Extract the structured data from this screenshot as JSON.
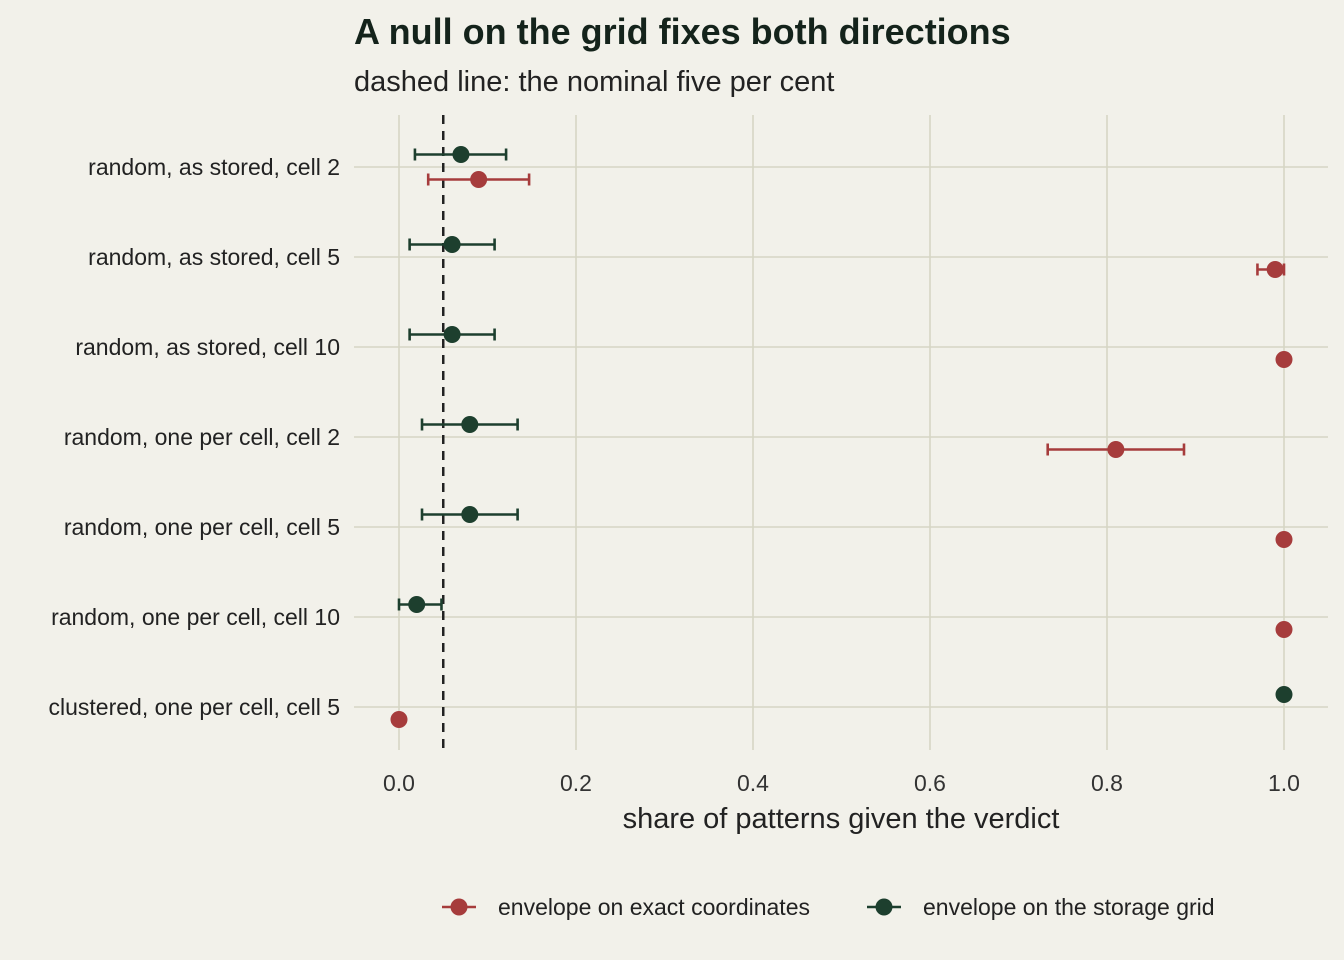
{
  "chart_data": {
    "type": "scatter",
    "title": "A null on the grid fixes both directions",
    "subtitle": "dashed line: the nominal five per cent",
    "xlabel": "share of patterns given the verdict",
    "ylabel": "",
    "xlim": [
      -0.05,
      1.05
    ],
    "x_ticks": [
      "0.0",
      "0.2",
      "0.4",
      "0.6",
      "0.8",
      "1.0"
    ],
    "reference_line": {
      "value": 0.05,
      "style": "dashed"
    },
    "categories": [
      "random, as stored, cell 2",
      "random, as stored, cell 5",
      "random, as stored, cell 10",
      "random, one per cell, cell 2",
      "random, one per cell, cell 5",
      "random, one per cell, cell 10",
      "clustered, one per cell, cell 5"
    ],
    "series": [
      {
        "name": "envelope on exact coordinates",
        "color": "#a63c3c",
        "values": [
          0.09,
          0.99,
          1.0,
          0.81,
          1.0,
          1.0,
          0.0
        ],
        "lower": [
          0.033,
          0.97,
          null,
          0.733,
          null,
          null,
          null
        ],
        "upper": [
          0.147,
          1.0,
          null,
          0.887,
          null,
          null,
          null
        ]
      },
      {
        "name": "envelope on the storage grid",
        "color": "#1d3f2e",
        "values": [
          0.07,
          0.06,
          0.06,
          0.08,
          0.08,
          0.02,
          1.0
        ],
        "lower": [
          0.018,
          0.012,
          0.012,
          0.026,
          0.026,
          0.0,
          null
        ],
        "upper": [
          0.121,
          0.108,
          0.108,
          0.134,
          0.134,
          0.048,
          null
        ]
      }
    ],
    "grid": true,
    "legend_position": "bottom"
  }
}
